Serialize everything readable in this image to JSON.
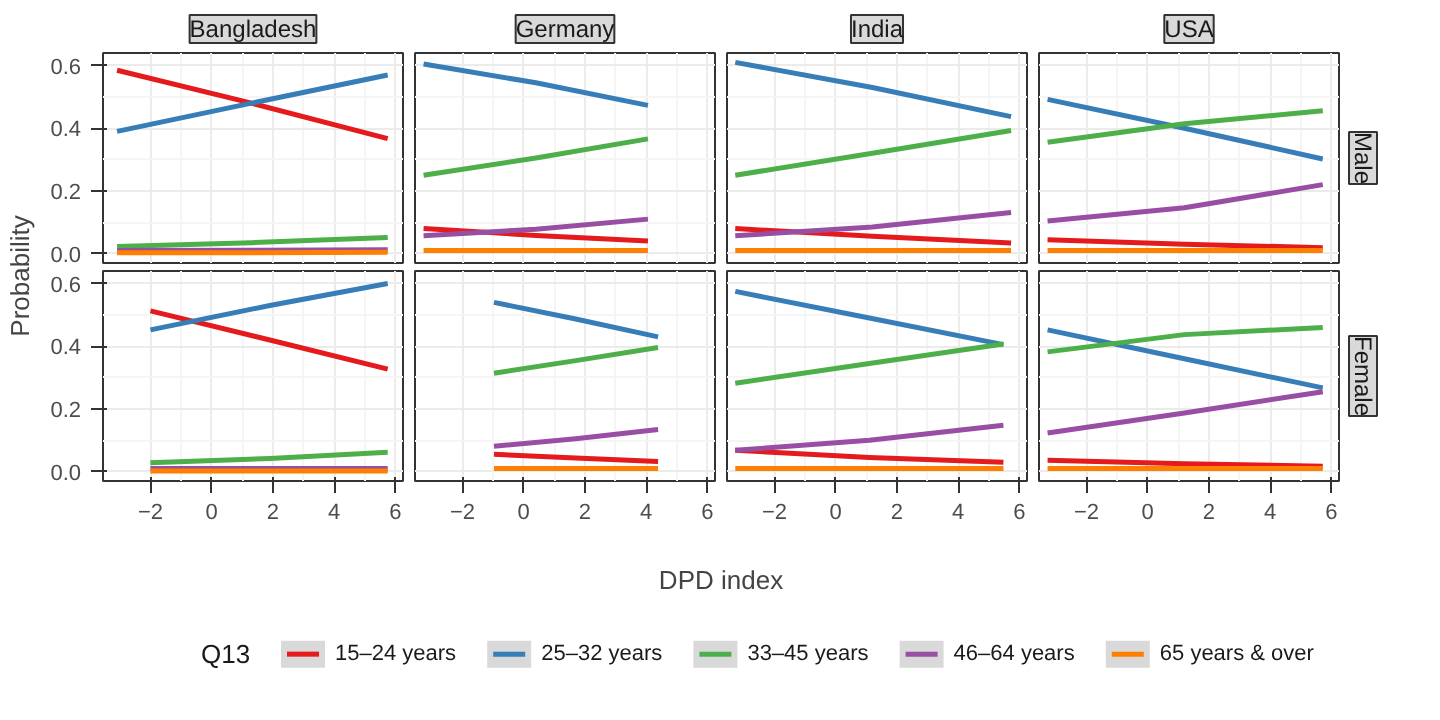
{
  "chart_data": [
    {
      "type": "line",
      "title": "Bangladesh",
      "ylabel": "Probability",
      "legend": "bottom",
      "legend_title": "Q13",
      "grid": true,
      "tick_labels": "y",
      "xlim": [
        -3.55,
        6.25
      ],
      "ylim": [
        -0.03,
        0.64
      ],
      "xticks": [
        -2,
        0,
        2,
        4,
        6
      ],
      "yticks": [
        {
          "value": 0,
          "label": "0.0"
        },
        0.2,
        0.4,
        0.6
      ],
      "x": [
        -3.09,
        1.3,
        5.75
      ],
      "series": [
        {
          "name": "15–24 years",
          "color": "#e41a1c",
          "values": [
            0.585,
            0.48,
            0.367
          ]
        },
        {
          "name": "25–32 years",
          "color": "#377eb8",
          "values": [
            0.39,
            0.48,
            0.57
          ]
        },
        {
          "name": "33–45 years",
          "color": "#4daf4a",
          "values": [
            0.023,
            0.035,
            0.051
          ]
        },
        {
          "name": "46–64 years",
          "color": "#984ea3",
          "values": [
            0.01,
            0.011,
            0.012
          ]
        },
        {
          "name": "65 years & over",
          "color": "#ff7f00",
          "values": [
            0.003,
            0.003,
            0.004
          ]
        }
      ]
    },
    {
      "type": "line",
      "title": "Germany",
      "grid": true,
      "tick_labels": false,
      "xlim": [
        -3.55,
        6.25
      ],
      "ylim": [
        -0.03,
        0.64
      ],
      "xticks": [
        -2,
        0,
        2,
        4,
        6
      ],
      "yticks": [
        0,
        0.2,
        0.4,
        0.6
      ],
      "x": [
        -3.27,
        0.4,
        4.06
      ],
      "series": [
        {
          "color": "#e41a1c",
          "values": [
            0.08,
            0.058,
            0.04
          ]
        },
        {
          "color": "#377eb8",
          "values": [
            0.605,
            0.545,
            0.473
          ]
        },
        {
          "color": "#4daf4a",
          "values": [
            0.25,
            0.305,
            0.366
          ]
        },
        {
          "color": "#984ea3",
          "values": [
            0.057,
            0.078,
            0.11
          ]
        },
        {
          "color": "#ff7f00",
          "values": [
            0.01,
            0.01,
            0.01
          ]
        }
      ]
    },
    {
      "type": "line",
      "title": "India",
      "grid": true,
      "tick_labels": false,
      "xlim": [
        -3.55,
        6.25
      ],
      "ylim": [
        -0.03,
        0.64
      ],
      "xticks": [
        -2,
        0,
        2,
        4,
        6
      ],
      "yticks": [
        0,
        0.2,
        0.4,
        0.6
      ],
      "x": [
        -3.28,
        1.2,
        5.73
      ],
      "series": [
        {
          "color": "#e41a1c",
          "values": [
            0.08,
            0.055,
            0.034
          ]
        },
        {
          "color": "#377eb8",
          "values": [
            0.61,
            0.53,
            0.437
          ]
        },
        {
          "color": "#4daf4a",
          "values": [
            0.25,
            0.32,
            0.393
          ]
        },
        {
          "color": "#984ea3",
          "values": [
            0.057,
            0.085,
            0.131
          ]
        },
        {
          "color": "#ff7f00",
          "values": [
            0.01,
            0.01,
            0.01
          ]
        }
      ]
    },
    {
      "type": "line",
      "title": "USA",
      "y2label": "Male",
      "grid": true,
      "tick_labels": false,
      "xlim": [
        -3.55,
        6.25
      ],
      "ylim": [
        -0.03,
        0.64
      ],
      "xticks": [
        -2,
        0,
        2,
        4,
        6
      ],
      "yticks": [
        0,
        0.2,
        0.4,
        0.6
      ],
      "x": [
        -3.27,
        1.2,
        5.72
      ],
      "series": [
        {
          "color": "#e41a1c",
          "values": [
            0.044,
            0.03,
            0.019
          ]
        },
        {
          "color": "#377eb8",
          "values": [
            0.492,
            0.4,
            0.302
          ]
        },
        {
          "color": "#4daf4a",
          "values": [
            0.355,
            0.414,
            0.456
          ]
        },
        {
          "color": "#984ea3",
          "values": [
            0.104,
            0.146,
            0.22
          ]
        },
        {
          "color": "#ff7f00",
          "values": [
            0.01,
            0.01,
            0.01
          ]
        }
      ]
    },
    {
      "type": "line",
      "grid": true,
      "xlim": [
        -3.55,
        6.25
      ],
      "ylim": [
        -0.03,
        0.64
      ],
      "xticks": [
        -2,
        0,
        2,
        4,
        6
      ],
      "yticks": [
        {
          "value": 0,
          "label": "0.0"
        },
        0.2,
        0.4,
        0.6
      ],
      "x": [
        -2.0,
        1.9,
        5.75
      ],
      "series": [
        {
          "color": "#e41a1c",
          "values": [
            0.513,
            0.42,
            0.327
          ]
        },
        {
          "color": "#377eb8",
          "values": [
            0.452,
            0.53,
            0.6
          ]
        },
        {
          "color": "#4daf4a",
          "values": [
            0.028,
            0.042,
            0.062
          ]
        },
        {
          "color": "#984ea3",
          "values": [
            0.01,
            0.01,
            0.01
          ]
        },
        {
          "color": "#ff7f00",
          "values": [
            0.002,
            0.002,
            0.002
          ]
        }
      ]
    },
    {
      "type": "line",
      "xlabel": "DPD index",
      "grid": true,
      "tick_labels": "x",
      "xlim": [
        -3.55,
        6.25
      ],
      "ylim": [
        -0.03,
        0.64
      ],
      "xticks": [
        -2,
        0,
        2,
        4,
        6
      ],
      "yticks": [
        0,
        0.2,
        0.4,
        0.6
      ],
      "x": [
        -0.97,
        1.7,
        4.39
      ],
      "series": [
        {
          "color": "#e41a1c",
          "values": [
            0.055,
            0.043,
            0.032
          ]
        },
        {
          "color": "#377eb8",
          "values": [
            0.54,
            0.487,
            0.43
          ]
        },
        {
          "color": "#4daf4a",
          "values": [
            0.314,
            0.354,
            0.396
          ]
        },
        {
          "color": "#984ea3",
          "values": [
            0.081,
            0.105,
            0.134
          ]
        },
        {
          "color": "#ff7f00",
          "values": [
            0.01,
            0.01,
            0.01
          ]
        }
      ]
    },
    {
      "type": "line",
      "grid": true,
      "tick_labels": "x",
      "xlim": [
        -3.55,
        6.25
      ],
      "ylim": [
        -0.03,
        0.64
      ],
      "xticks": [
        -2,
        0,
        2,
        4,
        6
      ],
      "yticks": [
        0,
        0.2,
        0.4,
        0.6
      ],
      "x": [
        -3.28,
        1.1,
        5.48
      ],
      "series": [
        {
          "color": "#e41a1c",
          "values": [
            0.068,
            0.045,
            0.03
          ]
        },
        {
          "color": "#377eb8",
          "values": [
            0.575,
            0.49,
            0.405
          ]
        },
        {
          "color": "#4daf4a",
          "values": [
            0.282,
            0.345,
            0.407
          ]
        },
        {
          "color": "#984ea3",
          "values": [
            0.068,
            0.1,
            0.148
          ]
        },
        {
          "color": "#ff7f00",
          "values": [
            0.01,
            0.01,
            0.01
          ]
        }
      ]
    },
    {
      "type": "line",
      "y2label": "Female",
      "grid": true,
      "tick_labels": "x",
      "xlim": [
        -3.55,
        6.25
      ],
      "ylim": [
        -0.03,
        0.64
      ],
      "xticks": [
        -2,
        0,
        2,
        4,
        6
      ],
      "yticks": [
        0,
        0.2,
        0.4,
        0.6
      ],
      "x": [
        -3.27,
        1.2,
        5.72
      ],
      "series": [
        {
          "color": "#e41a1c",
          "values": [
            0.036,
            0.025,
            0.017
          ]
        },
        {
          "color": "#377eb8",
          "values": [
            0.452,
            0.36,
            0.267
          ]
        },
        {
          "color": "#4daf4a",
          "values": [
            0.382,
            0.437,
            0.46
          ]
        },
        {
          "color": "#984ea3",
          "values": [
            0.123,
            0.187,
            0.255
          ]
        },
        {
          "color": "#ff7f00",
          "values": [
            0.01,
            0.01,
            0.01
          ]
        }
      ]
    }
  ]
}
